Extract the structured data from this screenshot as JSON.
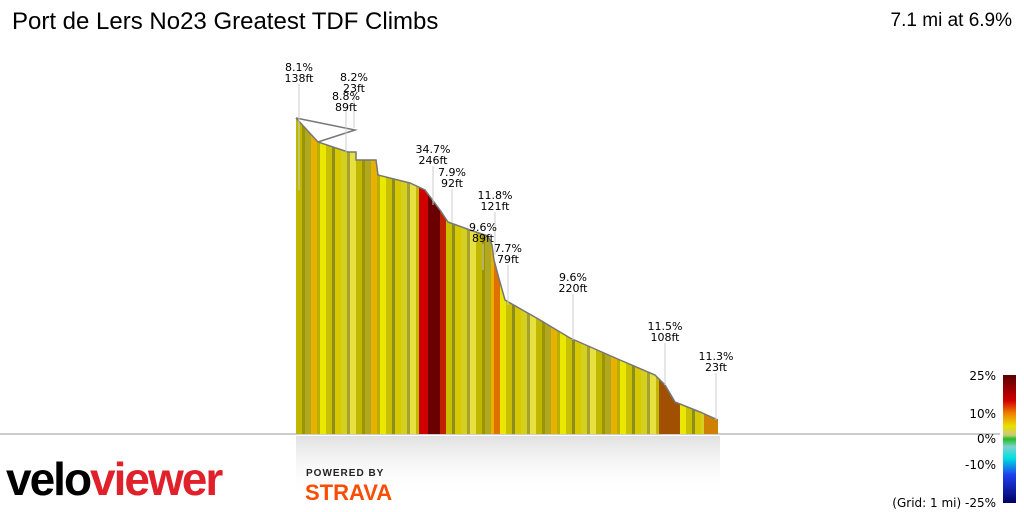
{
  "header": {
    "title": "Port de Lers No23 Greatest TDF Climbs",
    "summary": "7.1 mi at 6.9%"
  },
  "annotations": [
    {
      "grade": "8.1%",
      "gain": "138ft"
    },
    {
      "grade": "8.2%",
      "gain": "23ft"
    },
    {
      "grade": "8.8%",
      "gain": "89ft"
    },
    {
      "grade": "34.7%",
      "gain": "246ft"
    },
    {
      "grade": "7.9%",
      "gain": "92ft"
    },
    {
      "grade": "11.8%",
      "gain": "121ft"
    },
    {
      "grade": "9.6%",
      "gain": "89ft"
    },
    {
      "grade": "7.7%",
      "gain": "79ft"
    },
    {
      "grade": "9.6%",
      "gain": "220ft"
    },
    {
      "grade": "11.5%",
      "gain": "108ft"
    },
    {
      "grade": "11.3%",
      "gain": "23ft"
    }
  ],
  "legend": {
    "max": "25%",
    "high": "10%",
    "zero": "0%",
    "low": "-10%",
    "min": "(Grid: 1 mi) -25%"
  },
  "branding": {
    "velo": "velo",
    "viewer": "viewer",
    "powered": "POWERED BY",
    "strava": "STRAVA"
  },
  "colors": {
    "accent_red": "#e0202a",
    "strava": "#fc4c02"
  }
}
